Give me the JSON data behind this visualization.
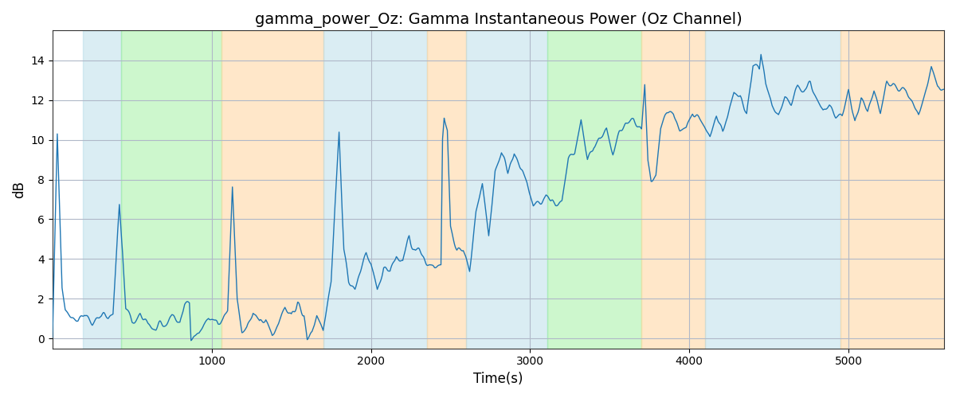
{
  "title": "gamma_power_Oz: Gamma Instantaneous Power (Oz Channel)",
  "xlabel": "Time(s)",
  "ylabel": "dB",
  "xlim": [
    0,
    5600
  ],
  "ylim": [
    -0.5,
    15.5
  ],
  "yticks": [
    0,
    2,
    4,
    6,
    8,
    10,
    12,
    14
  ],
  "xticks": [
    1000,
    2000,
    3000,
    4000,
    5000
  ],
  "line_color": "#1f77b4",
  "line_width": 1.0,
  "background_color": "#ffffff",
  "grid_color": "#b0b8c8",
  "title_fontsize": 14,
  "label_fontsize": 12,
  "figsize": [
    12,
    5
  ],
  "dpi": 100,
  "bands": [
    {
      "xmin": 190,
      "xmax": 430,
      "color": "#add8e6",
      "alpha": 0.45
    },
    {
      "xmin": 430,
      "xmax": 1060,
      "color": "#90ee90",
      "alpha": 0.45
    },
    {
      "xmin": 1060,
      "xmax": 1700,
      "color": "#ffd59e",
      "alpha": 0.55
    },
    {
      "xmin": 1700,
      "xmax": 2350,
      "color": "#add8e6",
      "alpha": 0.45
    },
    {
      "xmin": 2350,
      "xmax": 2600,
      "color": "#ffd59e",
      "alpha": 0.55
    },
    {
      "xmin": 2600,
      "xmax": 3110,
      "color": "#add8e6",
      "alpha": 0.45
    },
    {
      "xmin": 3110,
      "xmax": 3700,
      "color": "#90ee90",
      "alpha": 0.45
    },
    {
      "xmin": 3700,
      "xmax": 4100,
      "color": "#ffd59e",
      "alpha": 0.55
    },
    {
      "xmin": 4100,
      "xmax": 4950,
      "color": "#add8e6",
      "alpha": 0.45
    },
    {
      "xmin": 4950,
      "xmax": 5600,
      "color": "#ffd59e",
      "alpha": 0.55
    }
  ]
}
